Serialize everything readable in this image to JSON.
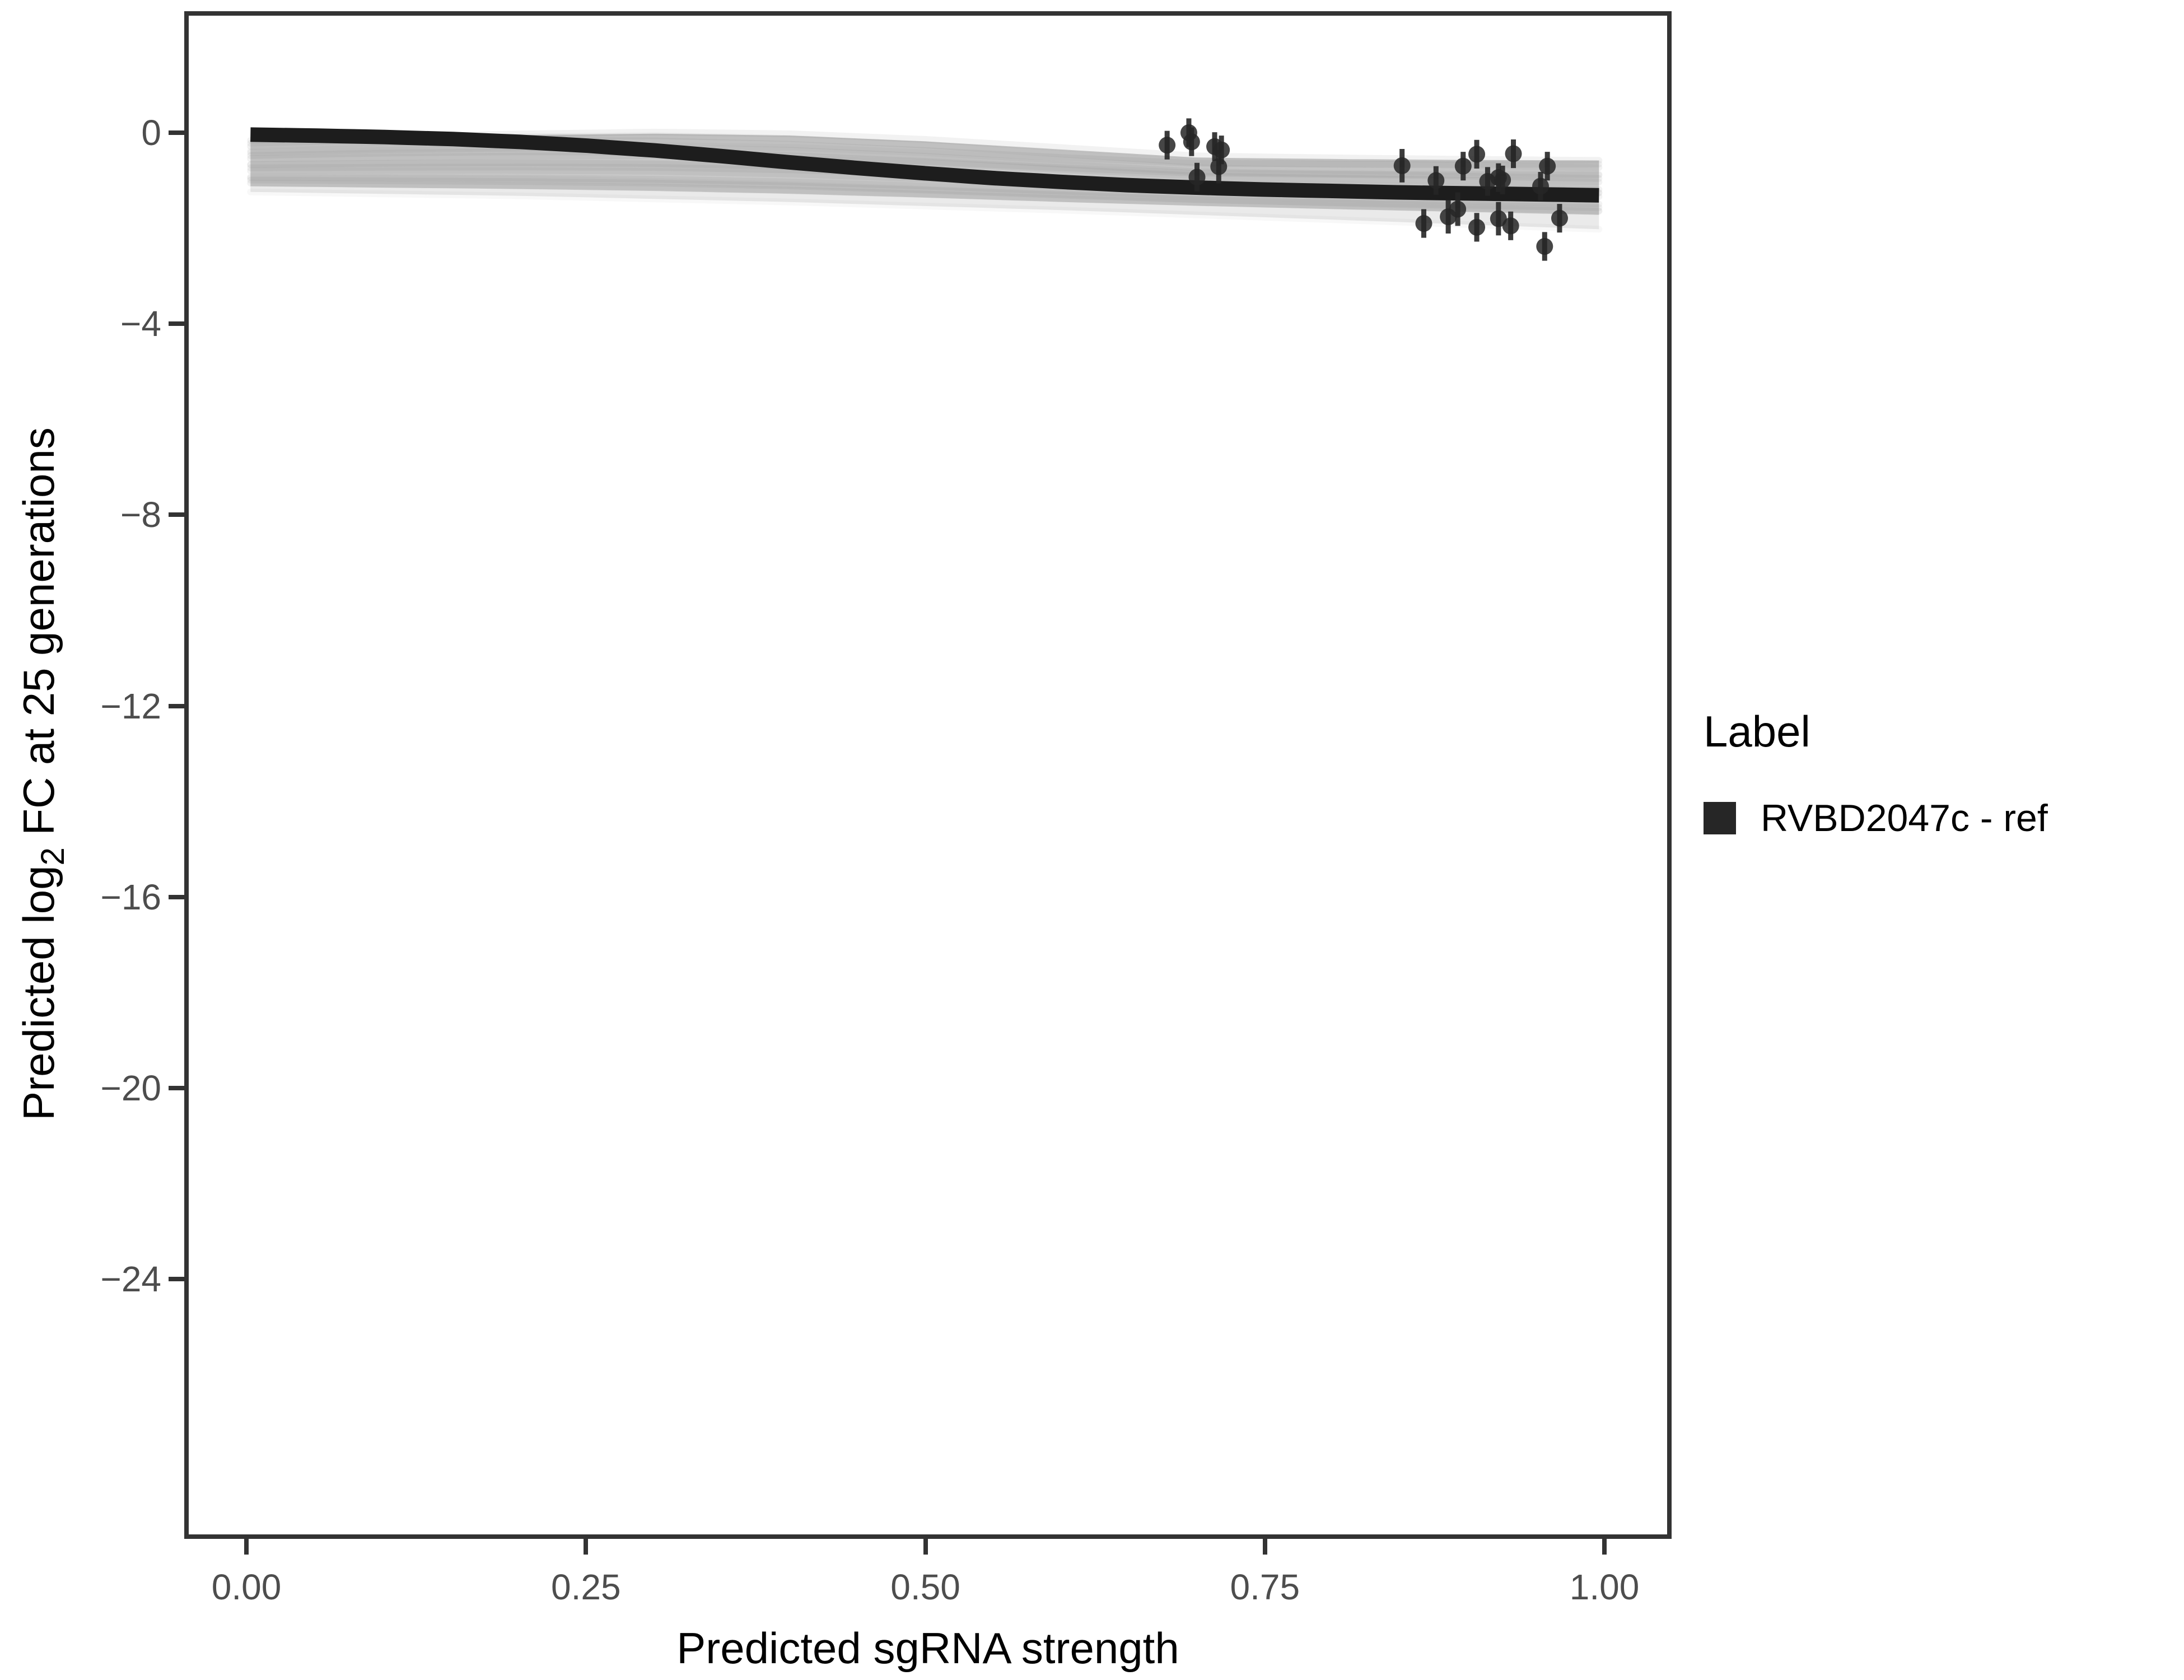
{
  "figure": {
    "background": "#ffffff",
    "panel_border_color": "#333333",
    "tick_color": "#333333",
    "tick_label_color": "#4d4d4d",
    "title_color": "#000000"
  },
  "axes": {
    "x": {
      "title": "Predicted sgRNA strength"
    },
    "y": {
      "title_prefix": "Predicted  log",
      "title_sub": "2",
      "title_suffix": " FC at 25 generations"
    }
  },
  "legend": {
    "title": "Label",
    "entries": [
      {
        "label": "RVBD2047c - ref",
        "key_color": "#262626",
        "key_shape": "square"
      }
    ]
  },
  "chart_data": {
    "type": "line",
    "title": "",
    "xlabel": "Predicted sgRNA strength",
    "ylabel": "Predicted log2 FC at 25 generations",
    "xlim": [
      -0.0425,
      1.046
    ],
    "ylim": [
      -29.35,
      2.45
    ],
    "grid": false,
    "legend_position": "right",
    "x_ticks": [
      {
        "v": 0.0,
        "label": "0.00"
      },
      {
        "v": 0.25,
        "label": "0.25"
      },
      {
        "v": 0.5,
        "label": "0.50"
      },
      {
        "v": 0.75,
        "label": "0.75"
      },
      {
        "v": 1.0,
        "label": "1.00"
      }
    ],
    "y_ticks": [
      {
        "v": 0,
        "label": "0"
      },
      {
        "v": -4,
        "label": "−4"
      },
      {
        "v": -8,
        "label": "−8"
      },
      {
        "v": -12,
        "label": "−12"
      },
      {
        "v": -16,
        "label": "−16"
      },
      {
        "v": -20,
        "label": "−20"
      },
      {
        "v": -24,
        "label": "−24"
      }
    ],
    "series": [
      {
        "name": "RVBD2047c - ref",
        "kind": "fitted-curve",
        "color": "#1d1d1d",
        "stroke_width": 26,
        "x": [
          0.003,
          0.05,
          0.1,
          0.15,
          0.2,
          0.25,
          0.3,
          0.35,
          0.4,
          0.45,
          0.5,
          0.55,
          0.6,
          0.65,
          0.7,
          0.75,
          0.8,
          0.85,
          0.9,
          0.95,
          0.996
        ],
        "y": [
          -0.04,
          -0.06,
          -0.09,
          -0.13,
          -0.19,
          -0.27,
          -0.37,
          -0.49,
          -0.62,
          -0.74,
          -0.85,
          -0.95,
          -1.03,
          -1.1,
          -1.15,
          -1.19,
          -1.22,
          -1.25,
          -1.27,
          -1.29,
          -1.31
        ]
      }
    ],
    "posterior_band": {
      "description": "ensemble of thin gray posterior draw curves forming a band",
      "color": "#7f7f7f",
      "upper": [
        [
          0.003,
          -0.16
        ],
        [
          0.1,
          -0.1
        ],
        [
          0.2,
          -0.05
        ],
        [
          0.3,
          -0.02
        ],
        [
          0.4,
          -0.06
        ],
        [
          0.5,
          -0.18
        ],
        [
          0.6,
          -0.35
        ],
        [
          0.7,
          -0.52
        ],
        [
          0.8,
          -0.55
        ],
        [
          0.9,
          -0.57
        ],
        [
          0.996,
          -0.58
        ]
      ],
      "lower": [
        [
          0.003,
          -1.12
        ],
        [
          0.1,
          -1.15
        ],
        [
          0.2,
          -1.18
        ],
        [
          0.3,
          -1.22
        ],
        [
          0.4,
          -1.28
        ],
        [
          0.5,
          -1.36
        ],
        [
          0.6,
          -1.45
        ],
        [
          0.7,
          -1.53
        ],
        [
          0.8,
          -1.6
        ],
        [
          0.9,
          -1.66
        ],
        [
          0.996,
          -1.72
        ]
      ],
      "outer_lower": [
        [
          0.003,
          -1.24
        ],
        [
          0.2,
          -1.32
        ],
        [
          0.4,
          -1.45
        ],
        [
          0.6,
          -1.62
        ],
        [
          0.8,
          -1.82
        ],
        [
          0.996,
          -2.02
        ]
      ],
      "n_draws": 16
    },
    "points": {
      "name": "sgRNA observed estimates",
      "color": "#262626",
      "marker": "circle-with-vertical-errorbar",
      "data": [
        [
          0.678,
          -0.26,
          0.3
        ],
        [
          0.694,
          0.0,
          0.3
        ],
        [
          0.696,
          -0.19,
          0.3
        ],
        [
          0.713,
          -0.29,
          0.3
        ],
        [
          0.718,
          -0.36,
          0.3
        ],
        [
          0.716,
          -0.71,
          0.35
        ],
        [
          0.7,
          -0.93,
          0.3
        ],
        [
          0.851,
          -0.69,
          0.35
        ],
        [
          0.876,
          -1.0,
          0.3
        ],
        [
          0.896,
          -0.7,
          0.3
        ],
        [
          0.906,
          -0.45,
          0.3
        ],
        [
          0.914,
          -1.02,
          0.3
        ],
        [
          0.922,
          -0.94,
          0.3
        ],
        [
          0.925,
          -0.99,
          0.3
        ],
        [
          0.933,
          -0.44,
          0.3
        ],
        [
          0.953,
          -1.12,
          0.3
        ],
        [
          0.958,
          -0.7,
          0.3
        ],
        [
          0.867,
          -1.9,
          0.3
        ],
        [
          0.885,
          -1.76,
          0.35
        ],
        [
          0.892,
          -1.6,
          0.35
        ],
        [
          0.906,
          -1.98,
          0.3
        ],
        [
          0.922,
          -1.8,
          0.35
        ],
        [
          0.931,
          -1.95,
          0.3
        ],
        [
          0.956,
          -2.38,
          0.3
        ],
        [
          0.967,
          -1.79,
          0.3
        ]
      ]
    }
  }
}
